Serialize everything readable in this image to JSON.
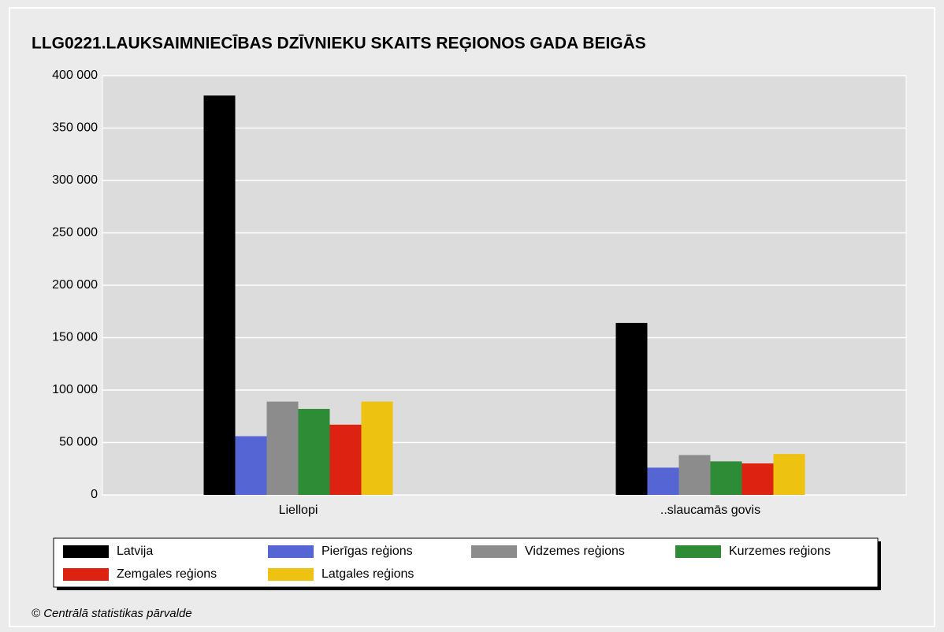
{
  "chart_data": {
    "type": "bar",
    "title": "LLG0221.LAUKSAIMNIECĪBAS DZĪVNIEKU SKAITS REĢIONOS GADA BEIGĀS",
    "categories": [
      "Liellopi",
      "..slaucamās govis"
    ],
    "series": [
      {
        "name": "Latvija",
        "color": "#000000",
        "values": [
          381000,
          164000
        ]
      },
      {
        "name": "Pierīgas reģions",
        "color": "#5566d4",
        "values": [
          56000,
          26000
        ]
      },
      {
        "name": "Vidzemes reģions",
        "color": "#8c8c8c",
        "values": [
          89000,
          38000
        ]
      },
      {
        "name": "Kurzemes reģions",
        "color": "#2e8b36",
        "values": [
          82000,
          32000
        ]
      },
      {
        "name": "Zemgales reģions",
        "color": "#dd2211",
        "values": [
          67000,
          30000
        ]
      },
      {
        "name": "Latgales reģions",
        "color": "#eec211",
        "values": [
          89000,
          39000
        ]
      }
    ],
    "ylim": [
      0,
      400000
    ],
    "yticks": [
      0,
      {
        "value": 50000,
        "label": "50 000"
      },
      {
        "value": 100000,
        "label": "100 000"
      },
      {
        "value": 150000,
        "label": "150 000"
      },
      {
        "value": 200000,
        "label": "200 000"
      },
      {
        "value": 250000,
        "label": "250 000"
      },
      {
        "value": 300000,
        "label": "300 000"
      },
      {
        "value": 350000,
        "label": "350 000"
      },
      {
        "value": 400000,
        "label": "400 000"
      }
    ],
    "grid": true,
    "legend": "bottom",
    "source": "© Centrālā statistikas pārvalde"
  }
}
